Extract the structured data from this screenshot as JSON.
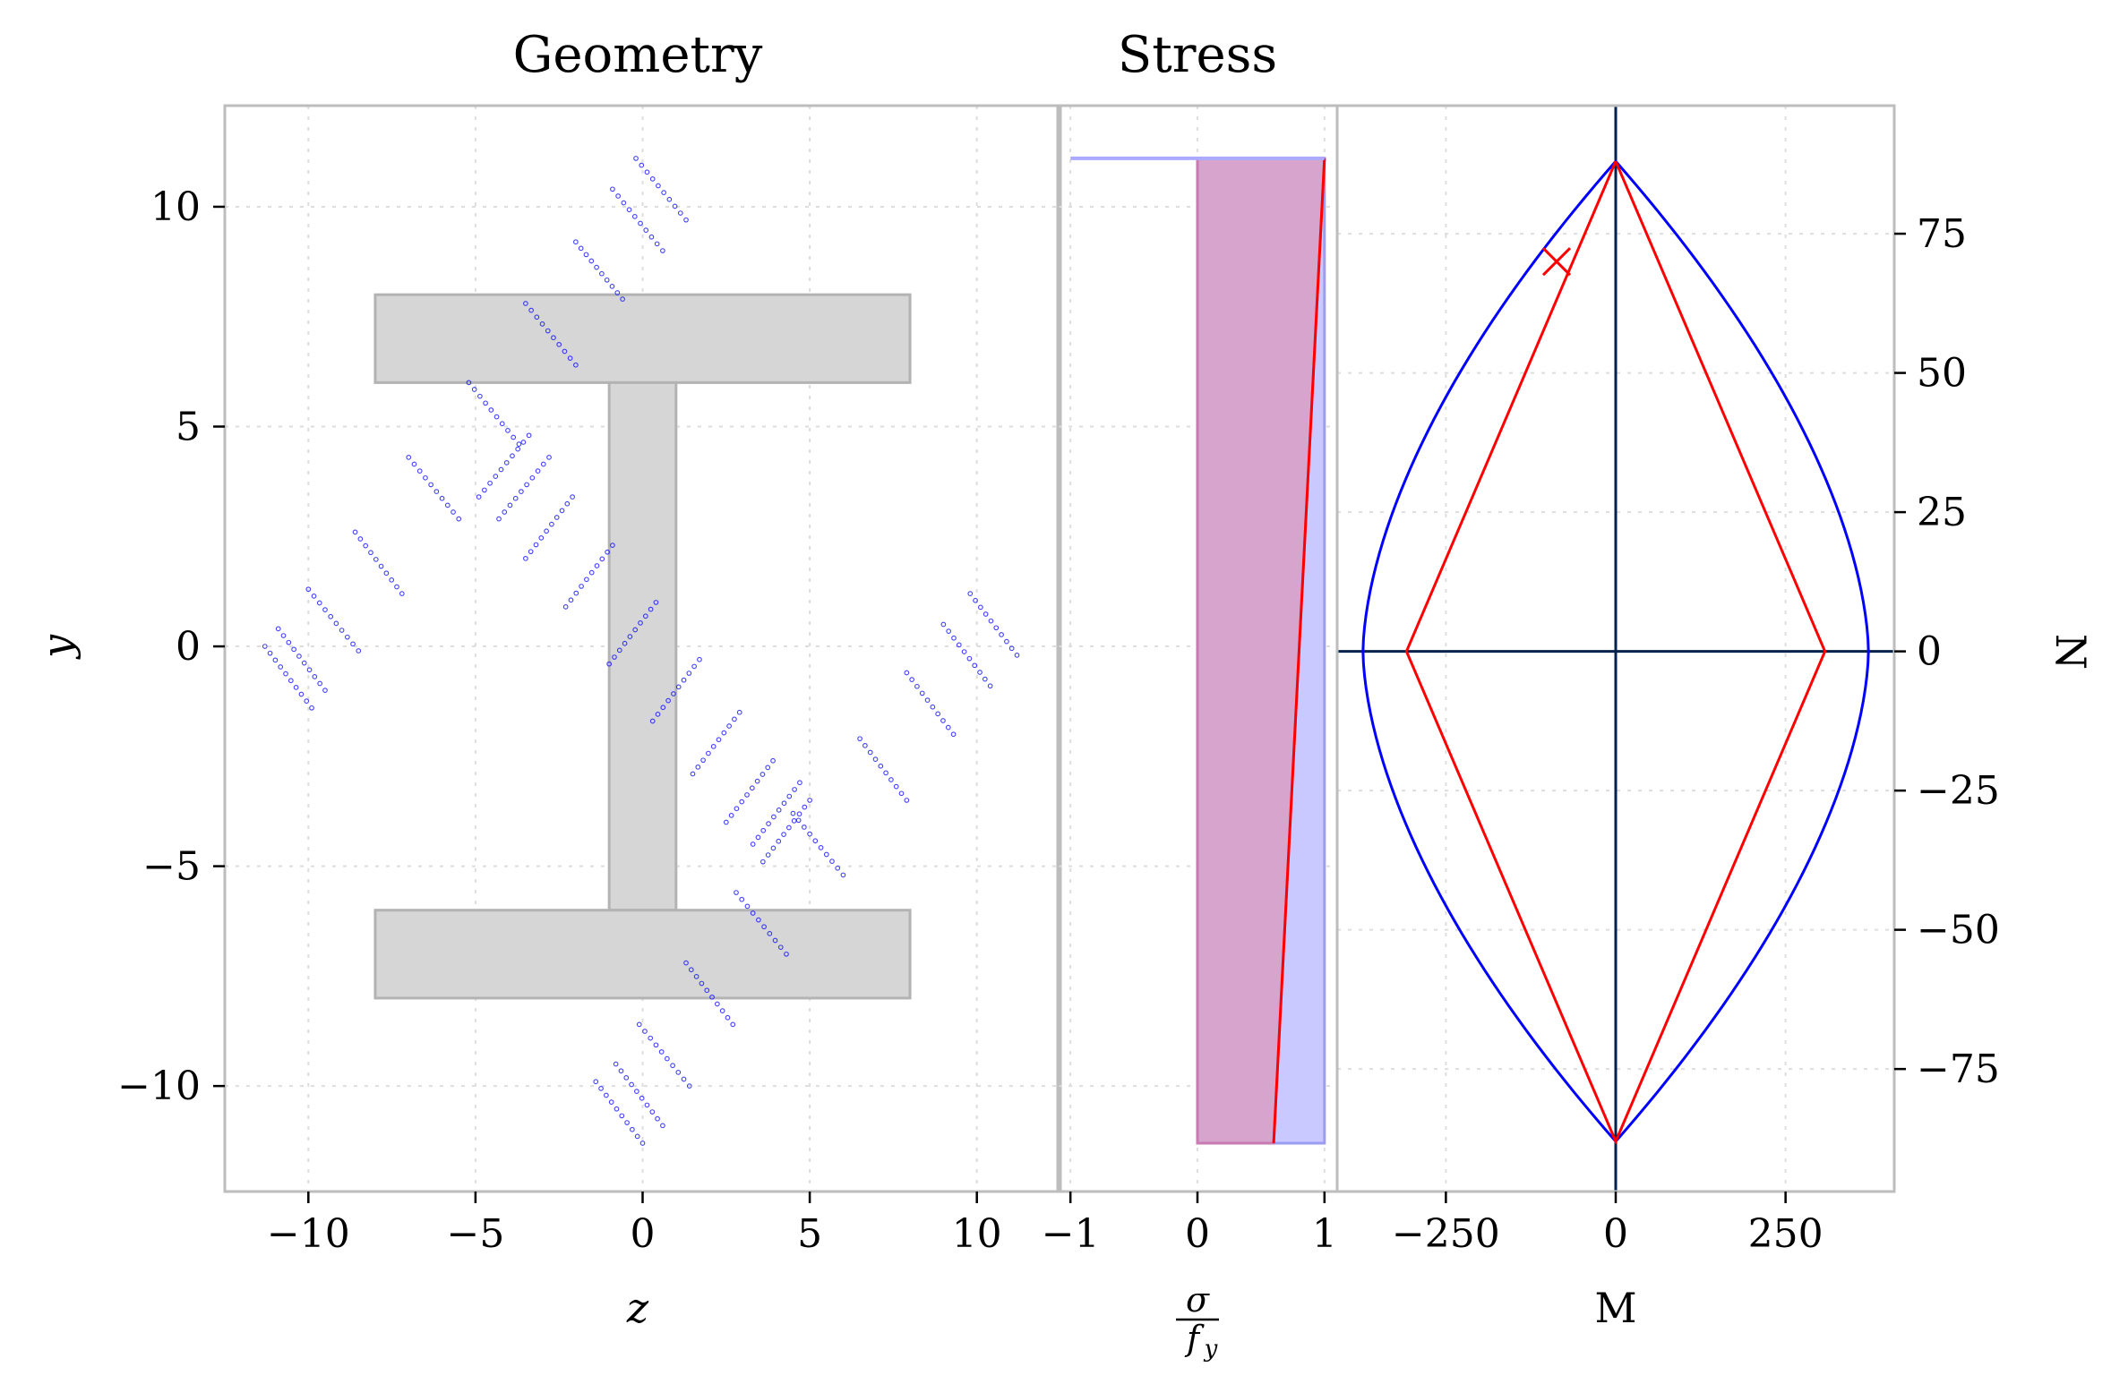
{
  "colors": {
    "section_fill": "#d6d6d6",
    "section_edge": "#b3b3b3",
    "fiber": "#0000ff",
    "stress_fill": "#c9c9ff",
    "stress_overlap": "#d6a4cc",
    "red": "#ff0000",
    "blue": "#0000ff",
    "axis_line": "#00224d"
  },
  "chart_data": [
    {
      "type": "scatter",
      "title": "Geometry",
      "xlabel": "z",
      "ylabel": "y",
      "xlim": [
        -12.5,
        12.5
      ],
      "ylim": [
        -12.4,
        12.3
      ],
      "xticks": [
        -10,
        -5,
        0,
        5,
        10
      ],
      "xtick_labels": [
        "−10",
        "−5",
        "0",
        "5",
        "10"
      ],
      "yticks": [
        -10,
        -5,
        0,
        5,
        10
      ],
      "ytick_labels": [
        "−10",
        "−5",
        "0",
        "5",
        "10"
      ],
      "grid": true,
      "section_rectangles": [
        {
          "name": "top-flange",
          "z": [
            -8,
            8
          ],
          "y": [
            6,
            8
          ]
        },
        {
          "name": "web",
          "z": [
            -1,
            1
          ],
          "y": [
            -6,
            6
          ]
        },
        {
          "name": "bottom-flange",
          "z": [
            -8,
            8
          ],
          "y": [
            -8,
            -6
          ]
        }
      ],
      "fiber_groups": [
        {
          "z0": -0.2,
          "y0": 11.1,
          "z1": 1.3,
          "y1": 9.7
        },
        {
          "z0": -0.9,
          "y0": 10.4,
          "z1": 0.6,
          "y1": 9.0
        },
        {
          "z0": -2.0,
          "y0": 9.2,
          "z1": -0.6,
          "y1": 7.9
        },
        {
          "z0": -3.5,
          "y0": 7.8,
          "z1": -2.0,
          "y1": 6.4
        },
        {
          "z0": -5.2,
          "y0": 6.0,
          "z1": -3.7,
          "y1": 4.6
        },
        {
          "z0": -3.4,
          "y0": 4.8,
          "z1": -4.9,
          "y1": 3.4
        },
        {
          "z0": -2.8,
          "y0": 4.3,
          "z1": -4.3,
          "y1": 2.9
        },
        {
          "z0": -2.1,
          "y0": 3.4,
          "z1": -3.5,
          "y1": 2.0
        },
        {
          "z0": -7.0,
          "y0": 4.3,
          "z1": -5.5,
          "y1": 2.9
        },
        {
          "z0": -0.9,
          "y0": 2.3,
          "z1": -2.3,
          "y1": 0.9
        },
        {
          "z0": 0.4,
          "y0": 1.0,
          "z1": -1.0,
          "y1": -0.4
        },
        {
          "z0": -8.6,
          "y0": 2.6,
          "z1": -7.2,
          "y1": 1.2
        },
        {
          "z0": -10.0,
          "y0": 1.3,
          "z1": -8.5,
          "y1": -0.1
        },
        {
          "z0": -10.9,
          "y0": 0.4,
          "z1": -9.5,
          "y1": -1.0
        },
        {
          "z0": -11.3,
          "y0": 0.0,
          "z1": -9.9,
          "y1": -1.4
        },
        {
          "z0": 1.7,
          "y0": -0.3,
          "z1": 0.3,
          "y1": -1.7
        },
        {
          "z0": 2.9,
          "y0": -1.5,
          "z1": 1.5,
          "y1": -2.9
        },
        {
          "z0": 3.9,
          "y0": -2.6,
          "z1": 2.5,
          "y1": -4.0
        },
        {
          "z0": 4.7,
          "y0": -3.1,
          "z1": 3.3,
          "y1": -4.5
        },
        {
          "z0": 5.0,
          "y0": -3.5,
          "z1": 3.6,
          "y1": -4.9
        },
        {
          "z0": 4.5,
          "y0": -3.8,
          "z1": 6.0,
          "y1": -5.2
        },
        {
          "z0": 6.5,
          "y0": -2.1,
          "z1": 7.9,
          "y1": -3.5
        },
        {
          "z0": 7.9,
          "y0": -0.6,
          "z1": 9.3,
          "y1": -2.0
        },
        {
          "z0": 9.0,
          "y0": 0.5,
          "z1": 10.4,
          "y1": -0.9
        },
        {
          "z0": 9.8,
          "y0": 1.2,
          "z1": 11.2,
          "y1": -0.2
        },
        {
          "z0": 2.8,
          "y0": -5.6,
          "z1": 4.3,
          "y1": -7.0
        },
        {
          "z0": 1.3,
          "y0": -7.2,
          "z1": 2.7,
          "y1": -8.6
        },
        {
          "z0": -0.1,
          "y0": -8.6,
          "z1": 1.4,
          "y1": -10.0
        },
        {
          "z0": -0.8,
          "y0": -9.5,
          "z1": 0.6,
          "y1": -10.9
        },
        {
          "z0": -1.4,
          "y0": -9.9,
          "z1": 0.0,
          "y1": -11.3
        }
      ]
    },
    {
      "type": "area",
      "title": "Stress",
      "xlabel_numerator": "σ",
      "xlabel_denominator": "f",
      "xlabel_sub": "y",
      "xlim": [
        -1.1,
        1.1
      ],
      "ylim": [
        -12.4,
        12.3
      ],
      "xticks": [
        -1,
        0,
        1
      ],
      "xtick_labels": [
        "−1",
        "0",
        "1"
      ],
      "grid": true,
      "series": [
        {
          "kind": "blue-fill",
          "y": [
            11.1,
            -11.3
          ],
          "x": [
            1.0,
            1.0
          ]
        },
        {
          "kind": "red-fill",
          "y": [
            11.1,
            -11.3
          ],
          "x": [
            1.0,
            0.6
          ]
        },
        {
          "kind": "blue-top-line",
          "y": [
            11.1,
            11.1
          ],
          "x": [
            -1.0,
            1.0
          ]
        }
      ]
    },
    {
      "type": "line",
      "xlabel": "M",
      "ylabel": "N",
      "xlim": [
        -410,
        410
      ],
      "ylim": [
        -97,
        98
      ],
      "xticks": [
        -250,
        0,
        250
      ],
      "xtick_labels": [
        "−250",
        "0",
        "250"
      ],
      "yticks": [
        -75,
        -50,
        -25,
        0,
        25,
        50,
        75
      ],
      "ytick_labels": [
        "−75",
        "−50",
        "−25",
        "0",
        "25",
        "50",
        "75"
      ],
      "grid": true,
      "series": [
        {
          "kind": "red-envelope",
          "M": [
            0,
            308,
            0,
            -308,
            0
          ],
          "N": [
            88,
            0,
            -88,
            0,
            88
          ]
        },
        {
          "kind": "blue-envelope",
          "M_max": 372,
          "N_max": 88
        }
      ],
      "marker": {
        "M": -87,
        "N": 70
      }
    }
  ]
}
